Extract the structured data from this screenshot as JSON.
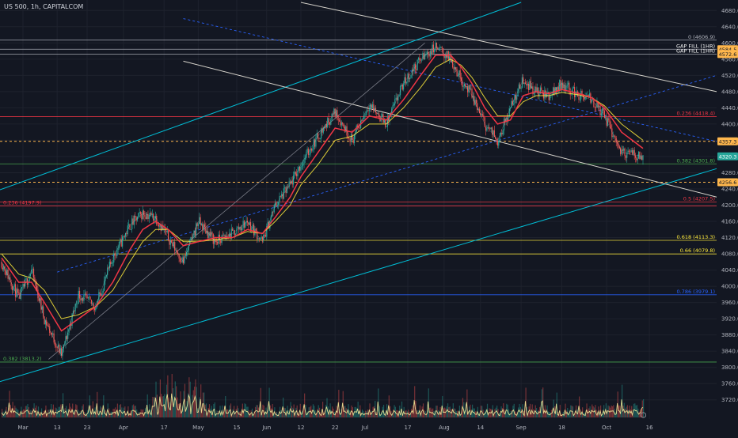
{
  "title": "US 500, 1h, CAPITALCOM",
  "colors": {
    "background": "#131722",
    "grid": "#1e222d",
    "up_candle": "#26a69a",
    "down_candle": "#ef5350",
    "ma_fast": "#f23645",
    "ma_slow": "#ffeb3b",
    "channel_cyan": "#00bcd4",
    "channel_white": "#d7d4cc",
    "dotted_blue": "#2962ff",
    "volume_line": "#fff59d"
  },
  "chart_data": {
    "type": "line",
    "ylim": [
      3700,
      4700
    ],
    "y_ticks": [
      "4680.0",
      "4640.0",
      "4600.0",
      "4560.0",
      "4520.0",
      "4480.0",
      "4440.0",
      "4400.0",
      "4360.0",
      "4320.0",
      "4280.0",
      "4240.0",
      "4200.0",
      "4160.0",
      "4120.0",
      "4080.0",
      "4040.0",
      "4000.0",
      "3960.0",
      "3920.0",
      "3880.0",
      "3840.0",
      "3800.0",
      "3760.0",
      "3720.0"
    ],
    "x_ticks": [
      "Mar",
      "13",
      "23",
      "Apr",
      "17",
      "May",
      "15",
      "Jun",
      "12",
      "22",
      "Jul",
      "17",
      "Aug",
      "14",
      "Sep",
      "18",
      "Oct",
      "16"
    ],
    "grid": true,
    "price_series": {
      "name": "US 500",
      "x_index": [
        0,
        8,
        14,
        20,
        28,
        36,
        44,
        52,
        60,
        66,
        72,
        78,
        85,
        92,
        100,
        108,
        115,
        122,
        128,
        135,
        140,
        148,
        156,
        164,
        172,
        180,
        188,
        196,
        203,
        210,
        215,
        220,
        226,
        232,
        238,
        244,
        250,
        256,
        262,
        270,
        276,
        282,
        290,
        300
      ],
      "values": [
        4060,
        3970,
        4040,
        3920,
        3830,
        3980,
        3950,
        4070,
        4150,
        4180,
        4170,
        4120,
        4060,
        4160,
        4110,
        4130,
        4160,
        4110,
        4200,
        4250,
        4300,
        4370,
        4430,
        4360,
        4450,
        4400,
        4500,
        4560,
        4590,
        4560,
        4510,
        4470,
        4400,
        4360,
        4440,
        4510,
        4480,
        4470,
        4500,
        4470,
        4460,
        4420,
        4330,
        4320
      ]
    },
    "ma_fast": [
      4070,
      4010,
      4010,
      3960,
      3890,
      3920,
      3950,
      4010,
      4090,
      4140,
      4160,
      4140,
      4100,
      4110,
      4120,
      4120,
      4140,
      4130,
      4170,
      4220,
      4270,
      4330,
      4390,
      4380,
      4420,
      4410,
      4460,
      4520,
      4570,
      4570,
      4540,
      4500,
      4440,
      4400,
      4410,
      4470,
      4480,
      4475,
      4485,
      4475,
      4465,
      4440,
      4380,
      4340
    ],
    "ma_slow": [
      4080,
      4030,
      4020,
      3990,
      3920,
      3930,
      3950,
      3990,
      4060,
      4110,
      4140,
      4140,
      4110,
      4110,
      4115,
      4120,
      4135,
      4130,
      4160,
      4200,
      4250,
      4300,
      4360,
      4370,
      4400,
      4400,
      4440,
      4490,
      4540,
      4560,
      4545,
      4515,
      4465,
      4420,
      4420,
      4455,
      4470,
      4470,
      4478,
      4472,
      4465,
      4445,
      4400,
      4360
    ],
    "horizontal_levels": [
      {
        "label": "0 (4606.9)",
        "value": 4606.9,
        "color": "#b2b5be"
      },
      {
        "label": "GAP FILL (1HR)",
        "value": 4584.5,
        "color": "#b2b5be"
      },
      {
        "label": "GAP FILL (1HR)",
        "value": 4572.6,
        "color": "#b2b5be"
      },
      {
        "label": "0.236 (4418.4)",
        "value": 4418.4,
        "color": "#f23645"
      },
      {
        "label": "0.382 (4301.8)",
        "value": 4301.8,
        "color": "#4caf50"
      },
      {
        "label": "0.5 (4207.5)",
        "value": 4207.5,
        "color": "#f23645"
      },
      {
        "label": "0.618 (4113.3)",
        "value": 4113.3,
        "color": "#ffeb3b"
      },
      {
        "label": "0.66 (4079.8)",
        "value": 4079.8,
        "color": "#ffeb3b"
      },
      {
        "label": "0.786 (3979.1)",
        "value": 3979.1,
        "color": "#2962ff"
      },
      {
        "label": "0.236 (4197.9)",
        "value": 4197.9,
        "color": "#f23645"
      },
      {
        "label": "0.382 (3813.2)",
        "value": 3813.2,
        "color": "#4caf50"
      }
    ],
    "price_tags": [
      {
        "text": "4584.5",
        "value": 4584.5,
        "bg": "#ffb74d",
        "fg": "#131722"
      },
      {
        "text": "4572.6",
        "value": 4572.6,
        "bg": "#ffb74d",
        "fg": "#131722"
      },
      {
        "text": "4357.3",
        "value": 4357.3,
        "bg": "#ffb74d",
        "fg": "#131722"
      },
      {
        "text": "4320.3",
        "value": 4320.3,
        "bg": "#26a69a",
        "fg": "#ffffff"
      },
      {
        "text": "4256.6",
        "value": 4256.6,
        "bg": "#ffb74d",
        "fg": "#131722"
      }
    ],
    "dashed_levels": [
      4357.3,
      4256.6
    ]
  }
}
